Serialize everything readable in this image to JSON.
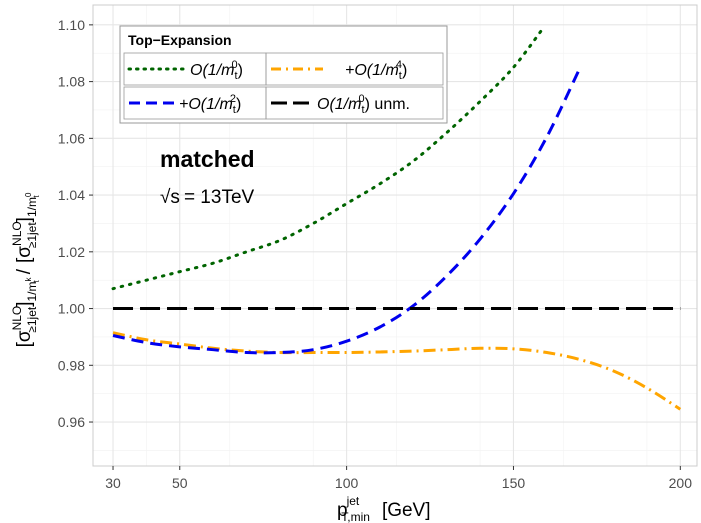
{
  "chart_data": {
    "type": "line",
    "xlabel_main": "p",
    "xlabel_sup": "jet",
    "xlabel_sub": "T,min",
    "xlabel_unit": "[GeV]",
    "ylabel_num_main": "[σ",
    "ylabel_num_sup": "NLO",
    "ylabel_num_sub": "≥1jet",
    "ylabel_num_close": "]",
    "ylabel_num_sub2": "1/m",
    "ylabel_num_sub3": "t",
    "ylabel_num_sup3": "k",
    "ylabel_sep": "/",
    "ylabel_den_main": "[σ",
    "ylabel_den_sup": "NLO",
    "ylabel_den_sub": "≥1jet",
    "ylabel_den_close": "]",
    "ylabel_den_sub2": "1/m",
    "ylabel_den_sub3": "t",
    "ylabel_den_sup3": "0",
    "xlim": [
      24,
      205
    ],
    "ylim": [
      0.9445,
      1.107
    ],
    "x_ticks": [
      30,
      50,
      100,
      150,
      200
    ],
    "y_ticks": [
      0.96,
      0.98,
      1.0,
      1.02,
      1.04,
      1.06,
      1.08,
      1.1
    ],
    "y_tick_labels": [
      "0.96",
      "0.98",
      "1.00",
      "1.02",
      "1.04",
      "1.06",
      "1.08",
      "1.10"
    ],
    "annotation_main": "matched",
    "annotation_energy_sqrt": "√s",
    "annotation_energy_rest": "= 13TeV",
    "legend": {
      "title": "Top−Expansion",
      "entries": [
        {
          "prefix": "O(1/m",
          "sub": "t",
          "sup": "0",
          "suffix": ")"
        },
        {
          "prefix": "+O(1/m",
          "sub": "t",
          "sup": "4",
          "suffix": ")"
        },
        {
          "prefix": "+O(1/m",
          "sub": "t",
          "sup": "2",
          "suffix": ")"
        },
        {
          "prefix": "O(1/m",
          "sub": "t",
          "sup": "0",
          "suffix": ") unm."
        }
      ]
    },
    "series": [
      {
        "key": "o0",
        "color": "#006400",
        "dash": "dotted",
        "x": [
          30,
          40,
          50,
          60,
          70,
          80,
          90,
          100,
          110,
          120,
          130,
          140,
          150,
          159
        ],
        "y": [
          1.007,
          1.01,
          1.013,
          1.016,
          1.02,
          1.024,
          1.03,
          1.037,
          1.044,
          1.052,
          1.062,
          1.073,
          1.085,
          1.099
        ]
      },
      {
        "key": "o4",
        "color": "#FFA500",
        "dash": "dashdot",
        "x": [
          30,
          40,
          50,
          60,
          70,
          80,
          90,
          100,
          110,
          120,
          130,
          140,
          150,
          160,
          170,
          180,
          190,
          200
        ],
        "y": [
          0.9915,
          0.989,
          0.9875,
          0.986,
          0.985,
          0.9845,
          0.9845,
          0.9845,
          0.9847,
          0.985,
          0.9855,
          0.986,
          0.9858,
          0.9845,
          0.982,
          0.978,
          0.972,
          0.9645
        ]
      },
      {
        "key": "o2",
        "color": "#0000EE",
        "dash": "dashed",
        "x": [
          30,
          40,
          50,
          60,
          70,
          80,
          90,
          100,
          110,
          120,
          130,
          140,
          150,
          160,
          170
        ],
        "y": [
          0.9905,
          0.988,
          0.9865,
          0.9855,
          0.9845,
          0.9845,
          0.9855,
          0.9885,
          0.9935,
          1.001,
          1.0115,
          1.0245,
          1.0405,
          1.0605,
          1.085
        ]
      },
      {
        "key": "unm",
        "color": "#000000",
        "dash": "longdash",
        "x": [
          30,
          200
        ],
        "y": [
          1.0,
          1.0
        ]
      }
    ],
    "grid": true,
    "legend_position": "top-left"
  }
}
